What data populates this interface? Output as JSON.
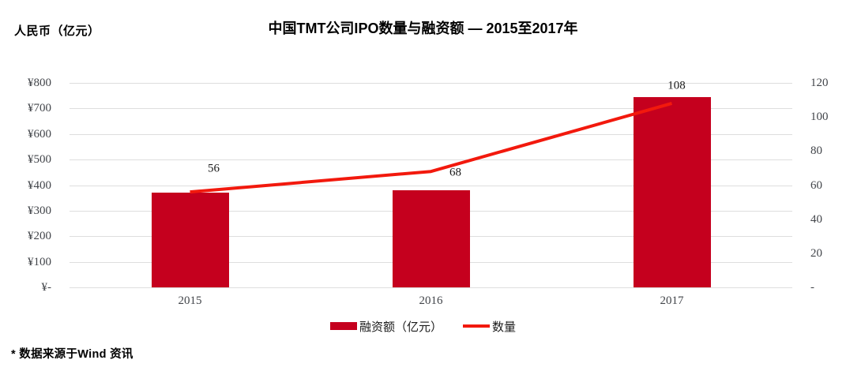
{
  "page": {
    "y_axis_title": "人民币（亿元）",
    "title": "中国TMT公司IPO数量与融资额 — 2015至2017年",
    "source_note": "* 数据来源于Wind 资讯"
  },
  "colors": {
    "bar": "#C5001E",
    "line": "#F2190D",
    "grid": "#DEDEDE",
    "tick_text": "#42454A",
    "label_text": "#1A1A1A"
  },
  "legend": {
    "bar_label": "融资额（亿元）",
    "line_label": "数量"
  },
  "chart_data": {
    "type": "bar+line",
    "title": "中国TMT公司IPO数量与融资额 — 2015至2017年",
    "categories": [
      "2015",
      "2016",
      "2017"
    ],
    "series": [
      {
        "name": "融资额（亿元）",
        "type": "bar",
        "axis": "left",
        "values": [
          370,
          380,
          745
        ]
      },
      {
        "name": "数量",
        "type": "line",
        "axis": "right",
        "values": [
          56,
          68,
          108
        ],
        "point_labels": [
          "56",
          "68",
          "108"
        ],
        "label_offsets": [
          [
            30,
            -29
          ],
          [
            31,
            2
          ],
          [
            6,
            -22
          ]
        ]
      }
    ],
    "left_axis": {
      "title": "人民币（亿元）",
      "min": 0,
      "max": 800,
      "tick_interval": 100,
      "tick_labels": [
        "¥800",
        "¥700",
        "¥600",
        "¥500",
        "¥400",
        "¥300",
        "¥200",
        "¥100",
        "¥-"
      ]
    },
    "right_axis": {
      "min": 0,
      "max": 120,
      "tick_interval": 20,
      "tick_labels": [
        "120",
        "100",
        "80",
        "60",
        "40",
        "20",
        "-"
      ]
    },
    "grid": "horizontal",
    "legend_position": "bottom"
  }
}
